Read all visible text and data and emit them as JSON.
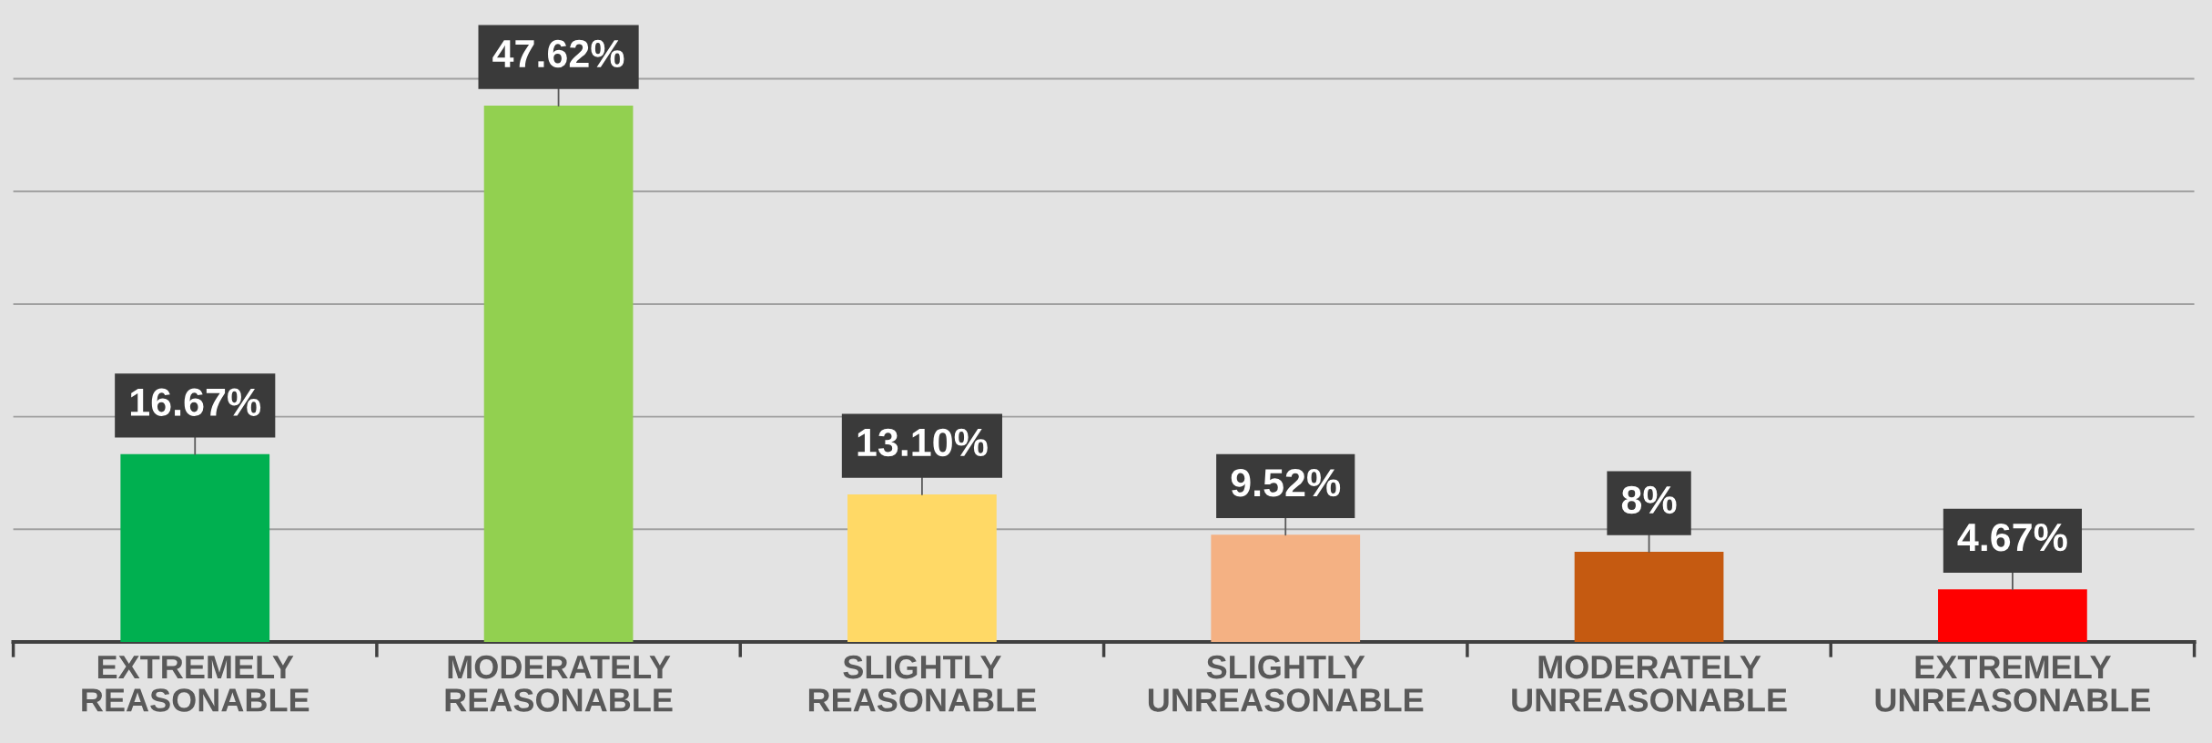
{
  "chart_data": {
    "type": "bar",
    "categories": [
      "EXTREMELY\nREASONABLE",
      "MODERATELY\nREASONABLE",
      "SLIGHTLY\nREASONABLE",
      "SLIGHTLY\nUNREASONABLE",
      "MODERATELY\nUNREASONABLE",
      "EXTREMELY\nUNREASONABLE"
    ],
    "values": [
      16.67,
      47.62,
      13.1,
      9.52,
      8,
      4.67
    ],
    "colors": [
      "#00b050",
      "#92d050",
      "#ffd966",
      "#f4b183",
      "#c55a11",
      "#ff0000"
    ],
    "value_labels": [
      "16.67%",
      "47.62%",
      "13.10%",
      "9.52%",
      "8%",
      "4.67%"
    ],
    "ylim": [
      0,
      57
    ],
    "yticks": [
      {
        "value": 10,
        "label": null
      },
      {
        "value": 20,
        "label": null
      },
      {
        "value": 30,
        "label": null
      },
      {
        "value": 40,
        "label": null
      },
      {
        "value": 50,
        "label": null
      }
    ],
    "grid": "y",
    "tick_labels": "x"
  }
}
